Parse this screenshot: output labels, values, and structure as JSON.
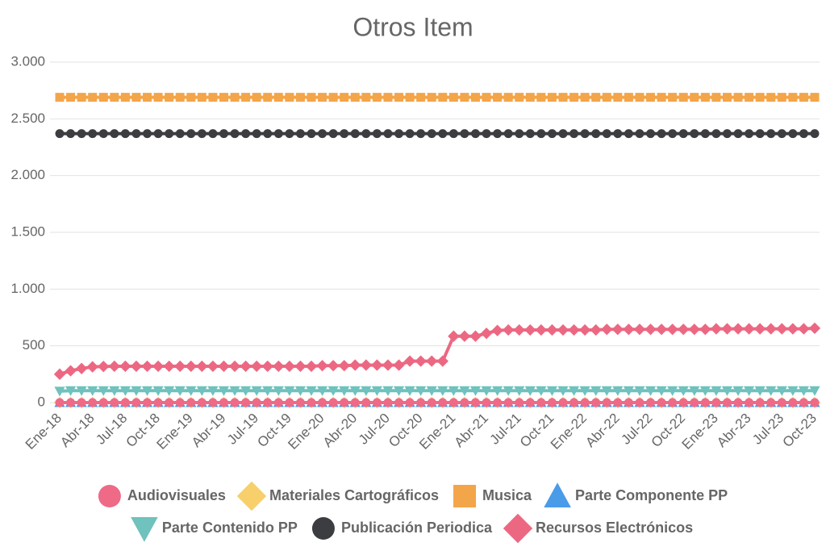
{
  "chart_data": {
    "type": "line",
    "title": "Otros Item",
    "categories": [
      "Ene-18",
      null,
      null,
      "Abr-18",
      null,
      null,
      "Jul-18",
      null,
      null,
      "Oct-18",
      null,
      null,
      "Ene-19",
      null,
      null,
      "Abr-19",
      null,
      null,
      "Jul-19",
      null,
      null,
      "Oct-19",
      null,
      null,
      "Ene-20",
      null,
      null,
      "Abr-20",
      null,
      null,
      "Jul-20",
      null,
      null,
      "Oct-20",
      null,
      null,
      "Ene-21",
      null,
      null,
      "Abr-21",
      null,
      null,
      "Jul-21",
      null,
      null,
      "Oct-21",
      null,
      null,
      "Ene-22",
      null,
      null,
      "Abr-22",
      null,
      null,
      "Jul-22",
      null,
      null,
      "Oct-22",
      null,
      null,
      "Ene-23",
      null,
      null,
      "Abr-23",
      null,
      null,
      "Jul-23",
      null,
      null,
      "Oct-23"
    ],
    "ylim": [
      0,
      3000
    ],
    "yticks": [
      0,
      500,
      {
        "value": 1000,
        "label": "1.000"
      },
      {
        "value": 1500,
        "label": "1.500"
      },
      {
        "value": 2000,
        "label": "2.000"
      },
      {
        "value": 2500,
        "label": "2.500"
      },
      {
        "value": 3000,
        "label": "3.000"
      }
    ],
    "grid": true,
    "series": [
      {
        "name": "Audiovisuales",
        "color": "#ee6a87",
        "marker": "circle",
        "values": [
          0,
          0,
          0,
          0,
          0,
          0,
          0,
          0,
          0,
          0,
          0,
          0,
          0,
          0,
          0,
          0,
          0,
          0,
          0,
          0,
          0,
          0,
          0,
          0,
          0,
          0,
          0,
          0,
          0,
          0,
          0,
          0,
          0,
          0,
          0,
          0,
          0,
          0,
          0,
          0,
          0,
          0,
          0,
          0,
          0,
          0,
          0,
          0,
          0,
          0,
          0,
          0,
          0,
          0,
          0,
          0,
          0,
          0,
          0,
          0,
          0,
          0,
          0,
          0,
          0,
          0,
          0,
          0,
          0,
          0
        ]
      },
      {
        "name": "Materiales Cartográficos",
        "color": "#f7d06b",
        "marker": "diamond",
        "values": [
          0,
          0,
          0,
          0,
          0,
          0,
          0,
          0,
          0,
          0,
          0,
          0,
          0,
          0,
          0,
          0,
          0,
          0,
          0,
          0,
          0,
          0,
          0,
          0,
          0,
          0,
          0,
          0,
          0,
          0,
          0,
          0,
          0,
          0,
          0,
          0,
          0,
          0,
          0,
          0,
          0,
          0,
          0,
          0,
          0,
          0,
          0,
          0,
          0,
          0,
          0,
          0,
          0,
          0,
          0,
          0,
          0,
          0,
          0,
          0,
          0,
          0,
          0,
          0,
          0,
          0,
          0,
          0,
          0,
          0
        ]
      },
      {
        "name": "Musica",
        "color": "#f3a54a",
        "marker": "square",
        "values": [
          2690,
          2690,
          2690,
          2690,
          2690,
          2690,
          2690,
          2690,
          2690,
          2690,
          2690,
          2690,
          2690,
          2690,
          2690,
          2690,
          2690,
          2690,
          2690,
          2690,
          2690,
          2690,
          2690,
          2690,
          2690,
          2690,
          2690,
          2690,
          2690,
          2690,
          2690,
          2690,
          2690,
          2690,
          2690,
          2690,
          2690,
          2690,
          2690,
          2690,
          2690,
          2690,
          2690,
          2690,
          2690,
          2690,
          2690,
          2690,
          2690,
          2690,
          2690,
          2690,
          2690,
          2690,
          2690,
          2690,
          2690,
          2690,
          2690,
          2690,
          2690,
          2690,
          2690,
          2690,
          2690,
          2690,
          2690,
          2690,
          2690,
          2690
        ]
      },
      {
        "name": "Parte Componente PP",
        "color": "#4a9be8",
        "marker": "triangle",
        "values": [
          0,
          0,
          0,
          0,
          0,
          0,
          0,
          0,
          0,
          0,
          0,
          0,
          0,
          0,
          0,
          0,
          0,
          0,
          0,
          0,
          0,
          0,
          0,
          0,
          0,
          0,
          0,
          0,
          0,
          0,
          0,
          0,
          0,
          0,
          0,
          0,
          0,
          0,
          0,
          0,
          0,
          0,
          0,
          0,
          0,
          0,
          0,
          0,
          0,
          0,
          0,
          0,
          0,
          0,
          0,
          0,
          0,
          0,
          0,
          0,
          0,
          0,
          0,
          0,
          0,
          0,
          0,
          0,
          0,
          0
        ]
      },
      {
        "name": "Parte Contenido PP",
        "color": "#6fc2be",
        "marker": "triangle-down",
        "values": [
          100,
          105,
          105,
          105,
          105,
          105,
          105,
          105,
          105,
          105,
          105,
          105,
          105,
          105,
          105,
          105,
          105,
          105,
          105,
          105,
          105,
          105,
          105,
          105,
          105,
          105,
          105,
          105,
          105,
          105,
          105,
          105,
          105,
          105,
          105,
          105,
          105,
          105,
          105,
          105,
          105,
          105,
          105,
          105,
          105,
          105,
          105,
          105,
          105,
          105,
          105,
          105,
          105,
          105,
          105,
          105,
          105,
          105,
          105,
          105,
          105,
          105,
          105,
          105,
          105,
          105,
          105,
          105,
          105,
          105
        ]
      },
      {
        "name": "Publicación Periodica",
        "color": "#3b3d40",
        "marker": "circle",
        "values": [
          2370,
          2370,
          2370,
          2370,
          2370,
          2370,
          2370,
          2370,
          2370,
          2370,
          2370,
          2370,
          2370,
          2370,
          2370,
          2370,
          2370,
          2370,
          2370,
          2370,
          2370,
          2370,
          2370,
          2370,
          2370,
          2370,
          2370,
          2370,
          2370,
          2370,
          2370,
          2370,
          2370,
          2370,
          2370,
          2370,
          2370,
          2370,
          2370,
          2370,
          2370,
          2370,
          2370,
          2370,
          2370,
          2370,
          2370,
          2370,
          2370,
          2370,
          2370,
          2370,
          2370,
          2370,
          2370,
          2370,
          2370,
          2370,
          2370,
          2370,
          2370,
          2370,
          2370,
          2370,
          2370,
          2370,
          2370,
          2370,
          2370,
          2370
        ]
      },
      {
        "name": "Recursos Electrónicos",
        "color": "#ec6882",
        "marker": "diamond",
        "values": [
          250,
          280,
          300,
          315,
          318,
          320,
          320,
          320,
          320,
          320,
          320,
          320,
          320,
          320,
          320,
          320,
          320,
          320,
          320,
          320,
          320,
          320,
          320,
          320,
          325,
          325,
          325,
          330,
          330,
          330,
          330,
          330,
          365,
          365,
          365,
          365,
          585,
          585,
          585,
          610,
          635,
          640,
          640,
          640,
          640,
          640,
          640,
          640,
          640,
          640,
          645,
          645,
          645,
          645,
          645,
          645,
          645,
          645,
          645,
          645,
          650,
          650,
          650,
          650,
          650,
          650,
          650,
          650,
          650,
          655
        ]
      }
    ]
  }
}
